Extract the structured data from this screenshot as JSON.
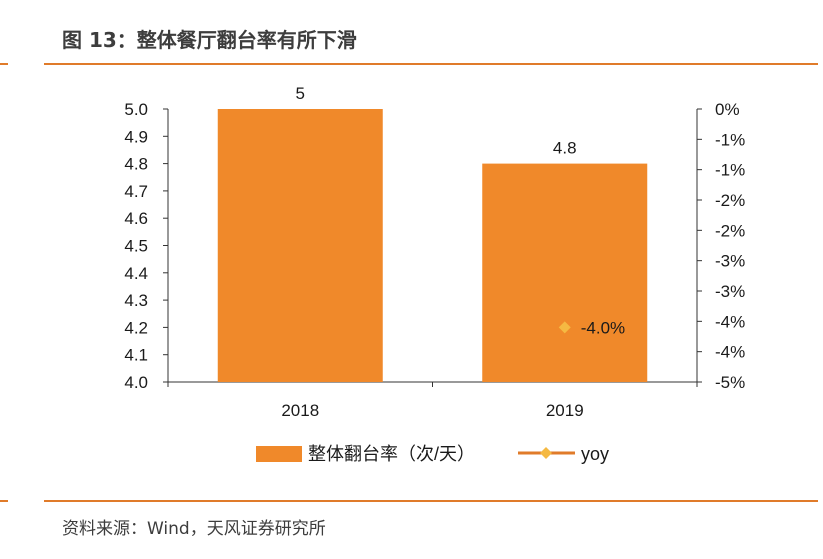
{
  "header": {
    "title": "图 13：整体餐厅翻台率有所下滑"
  },
  "footer": {
    "source": "资料来源：Wind，天风证券研究所"
  },
  "colors": {
    "accent": "#e07b2a",
    "bar": "#f0892a",
    "marker": "#f5b942",
    "axis": "#333333",
    "text": "#1a1a1a"
  },
  "chart_data": {
    "type": "bar",
    "title": "整体餐厅翻台率有所下滑",
    "categories": [
      "2018",
      "2019"
    ],
    "series": [
      {
        "name": "整体翻台率（次/天）",
        "type": "bar",
        "axis": "left",
        "values": [
          5,
          4.8
        ],
        "labels": [
          "5",
          "4.8"
        ]
      },
      {
        "name": "yoy",
        "type": "line",
        "axis": "right",
        "values": [
          null,
          -4.0
        ],
        "labels": [
          "",
          "-4.0%"
        ]
      }
    ],
    "left_axis": {
      "min": 4.0,
      "max": 5.0,
      "ticks": [
        "5.0",
        "4.9",
        "4.8",
        "4.7",
        "4.6",
        "4.5",
        "4.4",
        "4.3",
        "4.2",
        "4.1",
        "4.0"
      ]
    },
    "right_axis": {
      "min": -5,
      "max": 0,
      "ticks": [
        "0%",
        "-1%",
        "-1%",
        "-2%",
        "-2%",
        "-3%",
        "-3%",
        "-4%",
        "-4%",
        "-5%"
      ]
    },
    "legend": [
      "整体翻台率（次/天）",
      "yoy"
    ],
    "legend_position": "bottom",
    "grid": false
  }
}
